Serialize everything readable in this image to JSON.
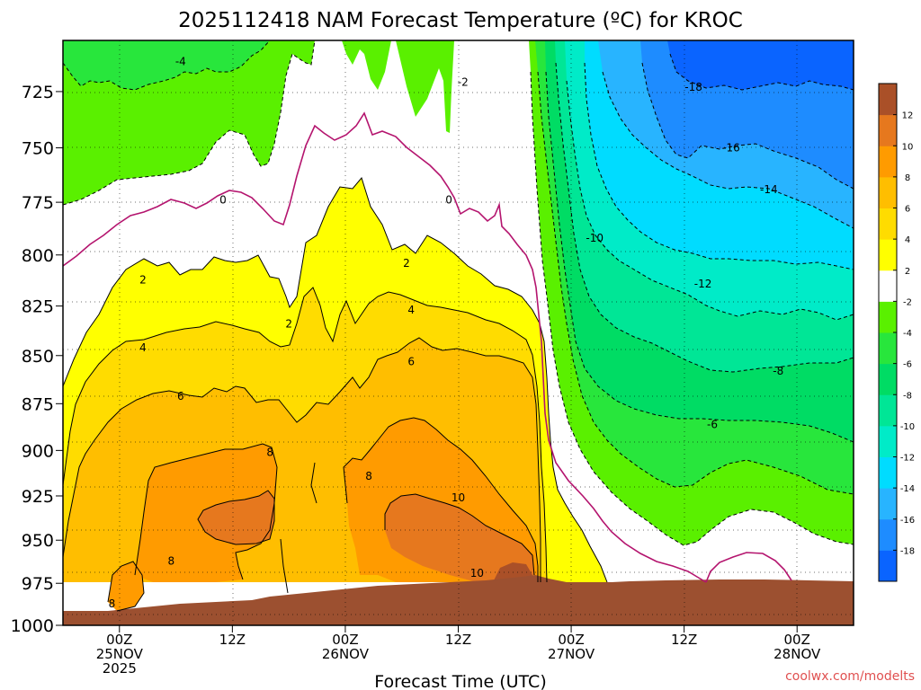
{
  "chart_data": {
    "type": "heatmap",
    "title": "2025112418 NAM Forecast Temperature (ºC) for KROC",
    "xlabel": "Forecast Time (UTC)",
    "ylabel": "",
    "credit": "coolwx.com/modelts",
    "y_axis": {
      "ticks": [
        725,
        750,
        775,
        800,
        825,
        850,
        875,
        900,
        925,
        950,
        975,
        1000
      ],
      "ylim": [
        1000,
        703
      ],
      "unit": "hPa",
      "inverted": true
    },
    "x_axis": {
      "xlim": [
        -6,
        78
      ],
      "unit": "hours after 2025-11-25 00Z",
      "ticks": [
        {
          "x": 0,
          "lines": [
            "00Z",
            "25NOV",
            "2025"
          ]
        },
        {
          "x": 12,
          "lines": [
            "12Z"
          ]
        },
        {
          "x": 24,
          "lines": [
            "00Z",
            "26NOV"
          ]
        },
        {
          "x": 36,
          "lines": [
            "12Z"
          ]
        },
        {
          "x": 48,
          "lines": [
            "00Z",
            "27NOV"
          ]
        },
        {
          "x": 60,
          "lines": [
            "12Z"
          ]
        },
        {
          "x": 72,
          "lines": [
            "00Z",
            "28NOV"
          ]
        }
      ]
    },
    "colorbar": {
      "levels": [
        -20,
        -18,
        -16,
        -14,
        -12,
        -10,
        -8,
        -6,
        -4,
        -2,
        2,
        4,
        6,
        8,
        10,
        12,
        14
      ],
      "labels": [
        "-18",
        "-16",
        "-14",
        "-12",
        "-10",
        "-8",
        "-6",
        "-4",
        "-2",
        "2",
        "4",
        "6",
        "8",
        "10",
        "12"
      ],
      "colors": [
        "#0a64ff",
        "#1e8cff",
        "#28b4ff",
        "#00dcff",
        "#00ebc8",
        "#00e696",
        "#00dc64",
        "#28e63c",
        "#5af000",
        "#ffffff",
        "#ffff00",
        "#ffdc00",
        "#ffbe00",
        "#ff9b00",
        "#e6781e",
        "#aa5028"
      ]
    },
    "surface_color": "#9c5030",
    "freezing_line_color": "#b4146e",
    "contour_labels": [
      {
        "text": "-4",
        "x": 6.5,
        "p": 712
      },
      {
        "text": "-2",
        "x": 36.5,
        "p": 721
      },
      {
        "text": "-18",
        "x": 61,
        "p": 723
      },
      {
        "text": "-16",
        "x": 65,
        "p": 750
      },
      {
        "text": "-14",
        "x": 69,
        "p": 769
      },
      {
        "text": "-10",
        "x": 50.5,
        "p": 792
      },
      {
        "text": "-12",
        "x": 62,
        "p": 814
      },
      {
        "text": "-8",
        "x": 70,
        "p": 858
      },
      {
        "text": "-6",
        "x": 63,
        "p": 886
      },
      {
        "text": "0",
        "x": 11,
        "p": 774
      },
      {
        "text": "0",
        "x": 35,
        "p": 774
      },
      {
        "text": "2",
        "x": 2.5,
        "p": 812
      },
      {
        "text": "2",
        "x": 30.5,
        "p": 804
      },
      {
        "text": "2",
        "x": 18,
        "p": 834
      },
      {
        "text": "4",
        "x": 2.5,
        "p": 846
      },
      {
        "text": "4",
        "x": 31,
        "p": 827
      },
      {
        "text": "6",
        "x": 6.5,
        "p": 871
      },
      {
        "text": "6",
        "x": 31,
        "p": 853
      },
      {
        "text": "8",
        "x": 16,
        "p": 901
      },
      {
        "text": "8",
        "x": 26.5,
        "p": 914
      },
      {
        "text": "8",
        "x": 5.5,
        "p": 962
      },
      {
        "text": "8",
        "x": -0.8,
        "p": 987
      },
      {
        "text": "10",
        "x": 36,
        "p": 926
      },
      {
        "text": "10",
        "x": 38,
        "p": 969
      }
    ]
  }
}
